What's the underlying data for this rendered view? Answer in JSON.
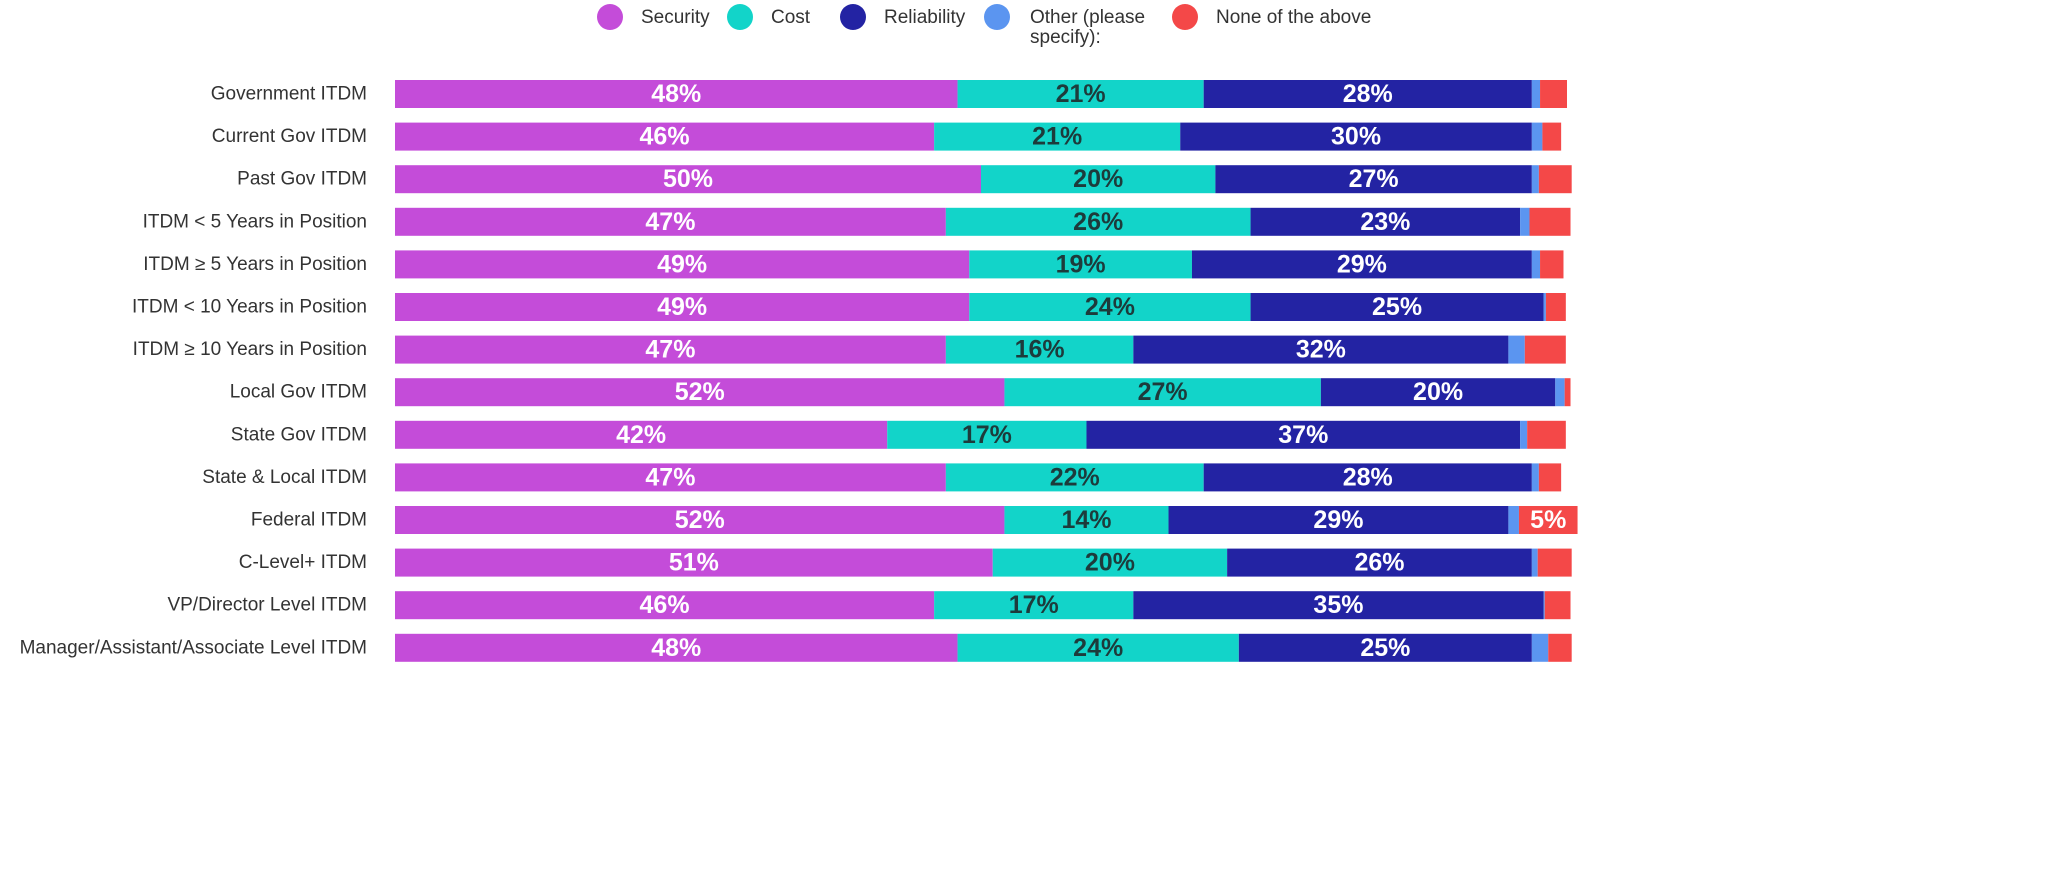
{
  "chart_data": {
    "type": "stacked_bar_horizontal",
    "categories": [
      "Government ITDM",
      "Current Gov ITDM",
      "Past Gov ITDM",
      "ITDM < 5 Years in Position",
      "ITDM ≥ 5 Years in Position",
      "ITDM < 10 Years in Position",
      "ITDM ≥ 10 Years in Position",
      "Local Gov ITDM",
      "State Gov ITDM",
      "State & Local ITDM",
      "Federal ITDM",
      "C-Level+ ITDM",
      "VP/Director Level ITDM",
      "Manager/Assistant/Associate Level ITDM"
    ],
    "xlim": [
      0,
      100
    ],
    "legend": "top",
    "series": [
      {
        "name": "Security",
        "color": "#c44cd9",
        "label_color": "#ffffff",
        "values": [
          48,
          46,
          50,
          47,
          49,
          49,
          47,
          52,
          42,
          47,
          52,
          51,
          46,
          48
        ],
        "value_labels": [
          "48%",
          "46%",
          "50%",
          "47%",
          "49%",
          "49%",
          "47%",
          "52%",
          "42%",
          "47%",
          "52%",
          "51%",
          "46%",
          "48%"
        ]
      },
      {
        "name": "Cost",
        "color": "#12d4c9",
        "label_color": "#1d3b3b",
        "values": [
          21,
          21,
          20,
          26,
          19,
          24,
          16,
          27,
          17,
          22,
          14,
          20,
          17,
          24
        ],
        "value_labels": [
          "21%",
          "21%",
          "20%",
          "26%",
          "19%",
          "24%",
          "16%",
          "27%",
          "17%",
          "22%",
          "14%",
          "20%",
          "17%",
          "24%"
        ]
      },
      {
        "name": "Reliability",
        "color": "#2323a3",
        "label_color": "#ffffff",
        "values": [
          28,
          30,
          27,
          23,
          29,
          25,
          32,
          20,
          37,
          28,
          29,
          26,
          35,
          25
        ],
        "value_labels": [
          "28%",
          "30%",
          "27%",
          "23%",
          "29%",
          "25%",
          "32%",
          "20%",
          "37%",
          "28%",
          "29%",
          "26%",
          "35%",
          "25%"
        ]
      },
      {
        "name": "Other (please specify):",
        "color": "#5b95f0",
        "values": [
          0.7,
          0.9,
          0.6,
          0.8,
          0.7,
          0.2,
          1.4,
          0.8,
          0.6,
          0.6,
          0.9,
          0.5,
          0.1,
          1.4
        ]
      },
      {
        "name": "None of the above",
        "color": "#f44848",
        "label_color": "#ffffff",
        "values": [
          2.3,
          1.6,
          2.8,
          3.5,
          2.0,
          1.7,
          3.5,
          0.5,
          3.3,
          1.9,
          5,
          2.9,
          2.2,
          2.0
        ],
        "value_labels": [
          null,
          null,
          null,
          null,
          null,
          null,
          null,
          null,
          null,
          null,
          "5%",
          null,
          null,
          null
        ]
      }
    ]
  }
}
